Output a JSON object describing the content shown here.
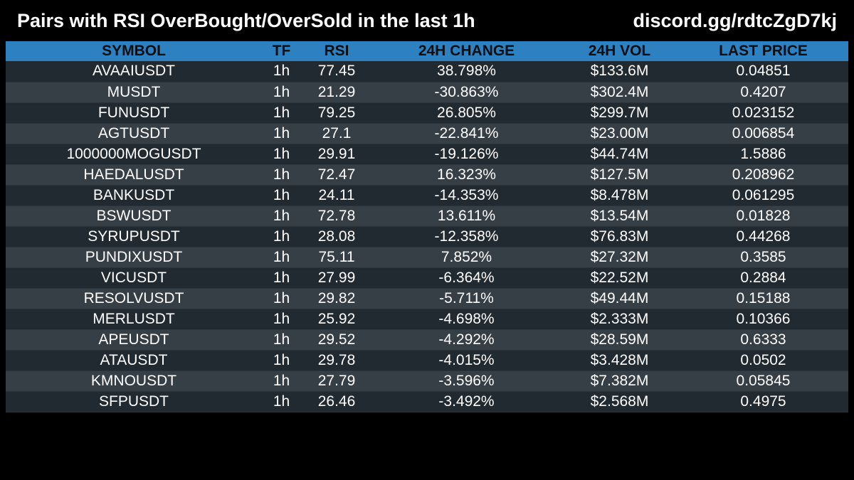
{
  "header": {
    "title": "Pairs with RSI OverBought/OverSold in the last 1h",
    "link": "discord.gg/rdtcZgD7kj"
  },
  "table": {
    "columns": [
      "SYMBOL",
      "TF",
      "RSI",
      "24H CHANGE",
      "24H VOL",
      "LAST PRICE"
    ],
    "rows": [
      [
        "AVAAIUSDT",
        "1h",
        "77.45",
        "38.798%",
        "$133.6M",
        "0.04851"
      ],
      [
        "MUSDT",
        "1h",
        "21.29",
        "-30.863%",
        "$302.4M",
        "0.4207"
      ],
      [
        "FUNUSDT",
        "1h",
        "79.25",
        "26.805%",
        "$299.7M",
        "0.023152"
      ],
      [
        "AGTUSDT",
        "1h",
        "27.1",
        "-22.841%",
        "$23.00M",
        "0.006854"
      ],
      [
        "1000000MOGUSDT",
        "1h",
        "29.91",
        "-19.126%",
        "$44.74M",
        "1.5886"
      ],
      [
        "HAEDALUSDT",
        "1h",
        "72.47",
        "16.323%",
        "$127.5M",
        "0.208962"
      ],
      [
        "BANKUSDT",
        "1h",
        "24.11",
        "-14.353%",
        "$8.478M",
        "0.061295"
      ],
      [
        "BSWUSDT",
        "1h",
        "72.78",
        "13.611%",
        "$13.54M",
        "0.01828"
      ],
      [
        "SYRUPUSDT",
        "1h",
        "28.08",
        "-12.358%",
        "$76.83M",
        "0.44268"
      ],
      [
        "PUNDIXUSDT",
        "1h",
        "75.11",
        "7.852%",
        "$27.32M",
        "0.3585"
      ],
      [
        "VICUSDT",
        "1h",
        "27.99",
        "-6.364%",
        "$22.52M",
        "0.2884"
      ],
      [
        "RESOLVUSDT",
        "1h",
        "29.82",
        "-5.711%",
        "$49.44M",
        "0.15188"
      ],
      [
        "MERLUSDT",
        "1h",
        "25.92",
        "-4.698%",
        "$2.333M",
        "0.10366"
      ],
      [
        "APEUSDT",
        "1h",
        "29.52",
        "-4.292%",
        "$28.59M",
        "0.6333"
      ],
      [
        "ATAUSDT",
        "1h",
        "29.78",
        "-4.015%",
        "$3.428M",
        "0.0502"
      ],
      [
        "KMNOUSDT",
        "1h",
        "27.79",
        "-3.596%",
        "$7.382M",
        "0.05845"
      ],
      [
        "SFPUSDT",
        "1h",
        "26.46",
        "-3.492%",
        "$2.568M",
        "0.4975"
      ]
    ]
  },
  "colors": {
    "background": "#000000",
    "header_row": "#2e81c0",
    "row_dark": "#222a31",
    "row_light": "#363e46",
    "text": "#ffffff"
  }
}
